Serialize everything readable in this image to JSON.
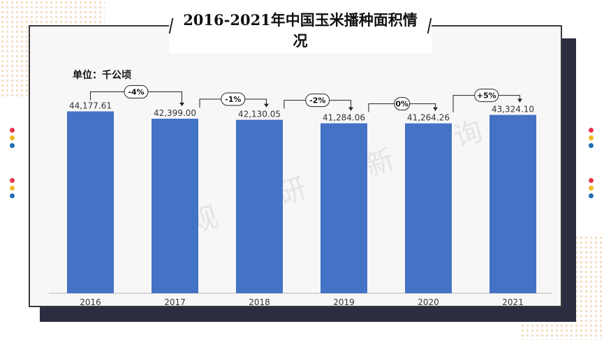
{
  "title": "2016-2021年中国玉米播种面积情况",
  "unit_label": "单位：千公顷",
  "watermark": "观 研 新 询",
  "colors": {
    "bar": "#4472c4",
    "dot_red": "#e8344a",
    "dot_yellow": "#f2b820",
    "dot_blue": "#1f6fb3"
  },
  "chart_data": {
    "type": "bar",
    "categories": [
      "2016",
      "2017",
      "2018",
      "2019",
      "2020",
      "2021"
    ],
    "values": [
      44177.61,
      42399.0,
      42130.05,
      41284.06,
      41264.26,
      43324.1
    ],
    "value_labels": [
      "44,177.61",
      "42,399.00",
      "42,130.05",
      "41,284.06",
      "41,264.26",
      "43,324.10"
    ],
    "changes": [
      "-4%",
      "-1%",
      "-2%",
      "0%",
      "+5%"
    ],
    "ylim": [
      0,
      48000
    ],
    "grid": false,
    "legend": "none"
  }
}
